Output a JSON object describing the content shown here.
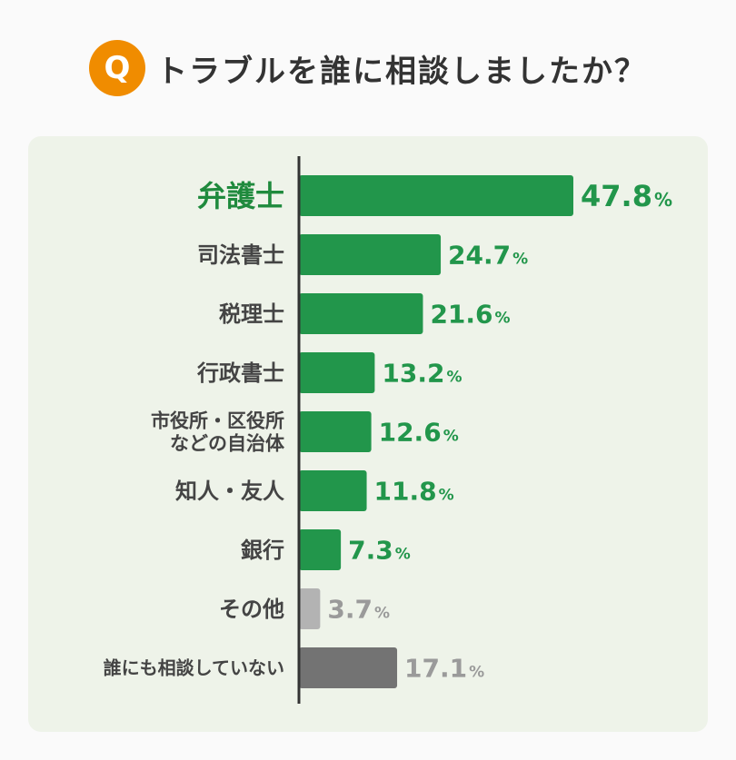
{
  "header": {
    "badge": "Q",
    "title": "トラブルを誰に相談しましたか？"
  },
  "chart_data": {
    "type": "bar",
    "orientation": "horizontal",
    "title": "トラブルを誰に相談しましたか？",
    "unit": "%",
    "categories": [
      [
        "弁護士"
      ],
      [
        "司法書士"
      ],
      [
        "税理士"
      ],
      [
        "行政書士"
      ],
      [
        "市役所・区役所",
        "などの自治体"
      ],
      [
        "知人・友人"
      ],
      [
        "銀行"
      ],
      [
        "その他"
      ],
      [
        "誰にも相談していない"
      ]
    ],
    "values": [
      47.8,
      24.7,
      21.6,
      13.2,
      12.6,
      11.8,
      7.3,
      3.7,
      17.1
    ],
    "value_labels": [
      "47.8",
      "24.7",
      "21.6",
      "13.2",
      "12.6",
      "11.8",
      "7.3",
      "3.7",
      "17.1"
    ],
    "highlight_index": 0,
    "colors": {
      "bar": "#22964b",
      "bar_other": "#b3b3b3",
      "bar_none": "#737373",
      "label_green": "#22964b",
      "label_gray": "#9a9a9a",
      "highlight_text": "#1f8a3d",
      "category_text": "#444444",
      "axis": "#333333"
    }
  }
}
